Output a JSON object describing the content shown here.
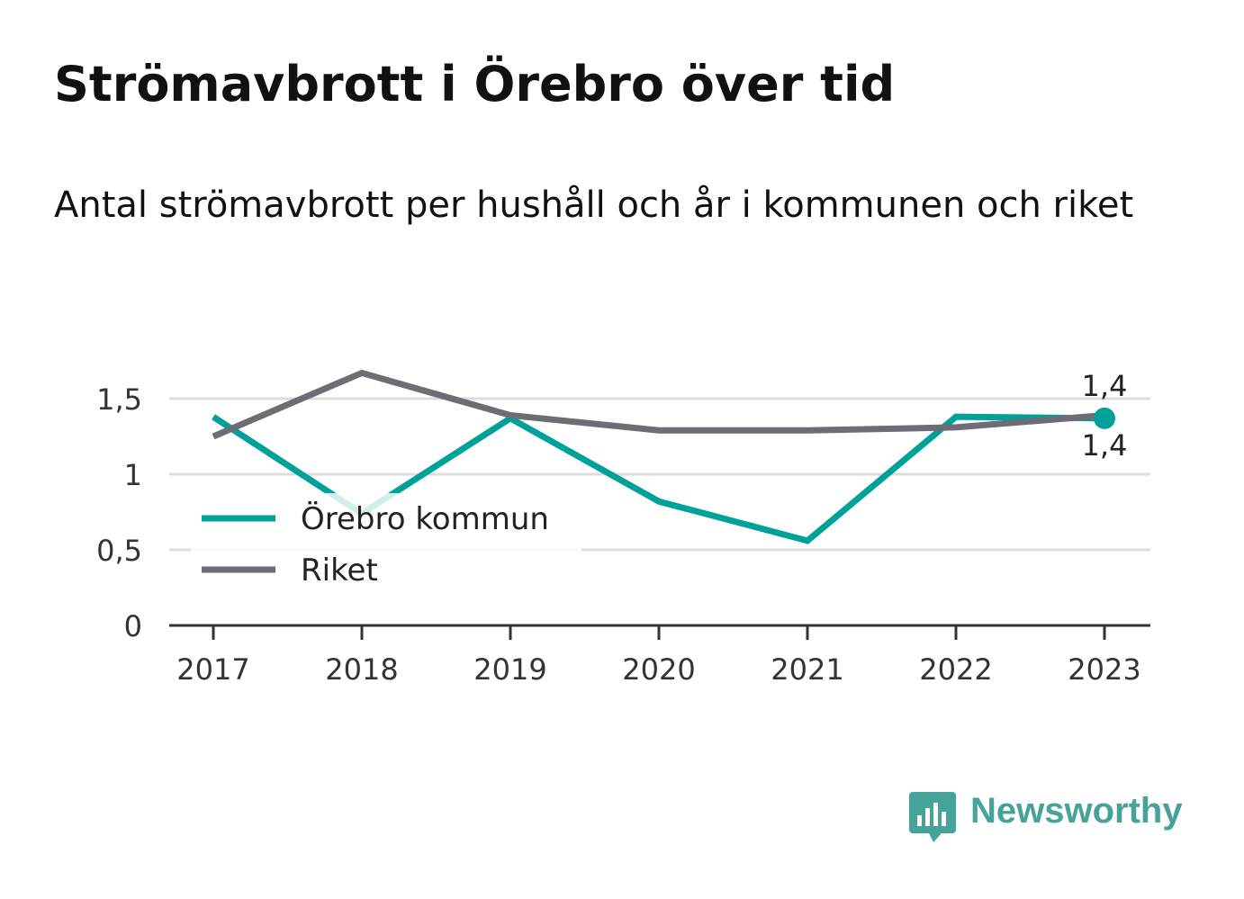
{
  "title": "Strömavbrott i Örebro över tid",
  "subtitle": "Antal strömavbrott per hushåll och år i kommunen och riket",
  "brand": {
    "name": "Newsworthy",
    "icon": "newsworthy-logo-icon",
    "color": "#45a399"
  },
  "chart_data": {
    "type": "line",
    "x": [
      "2017",
      "2018",
      "2019",
      "2020",
      "2021",
      "2022",
      "2023"
    ],
    "ylim": [
      0,
      1.5
    ],
    "yticks": [
      {
        "value": 0,
        "label": "0"
      },
      {
        "value": 0.5,
        "label": "0,5"
      },
      {
        "value": 1,
        "label": "1"
      },
      {
        "value": 1.5,
        "label": "1,5"
      }
    ],
    "grid": true,
    "legend_position": "bottom-left",
    "series": [
      {
        "name": "Örebro kommun",
        "color": "#00a199",
        "values": [
          1.38,
          0.74,
          1.37,
          0.82,
          0.56,
          1.38,
          1.37
        ],
        "end_label": "1,4"
      },
      {
        "name": "Riket",
        "color": "#6e6c75",
        "values": [
          1.25,
          1.67,
          1.39,
          1.29,
          1.29,
          1.31,
          1.39
        ],
        "end_label": "1,4"
      }
    ]
  }
}
